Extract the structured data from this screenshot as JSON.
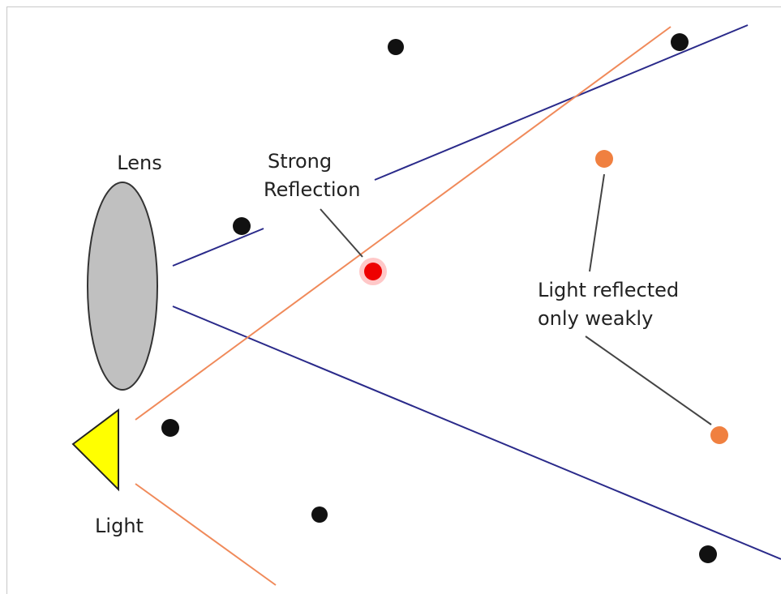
{
  "labels": {
    "lens": "Lens",
    "strong_reflection": [
      "Strong",
      "Reflection"
    ],
    "weak_reflection": [
      "Light reflected",
      "only weakly"
    ],
    "light": "Light"
  }
}
